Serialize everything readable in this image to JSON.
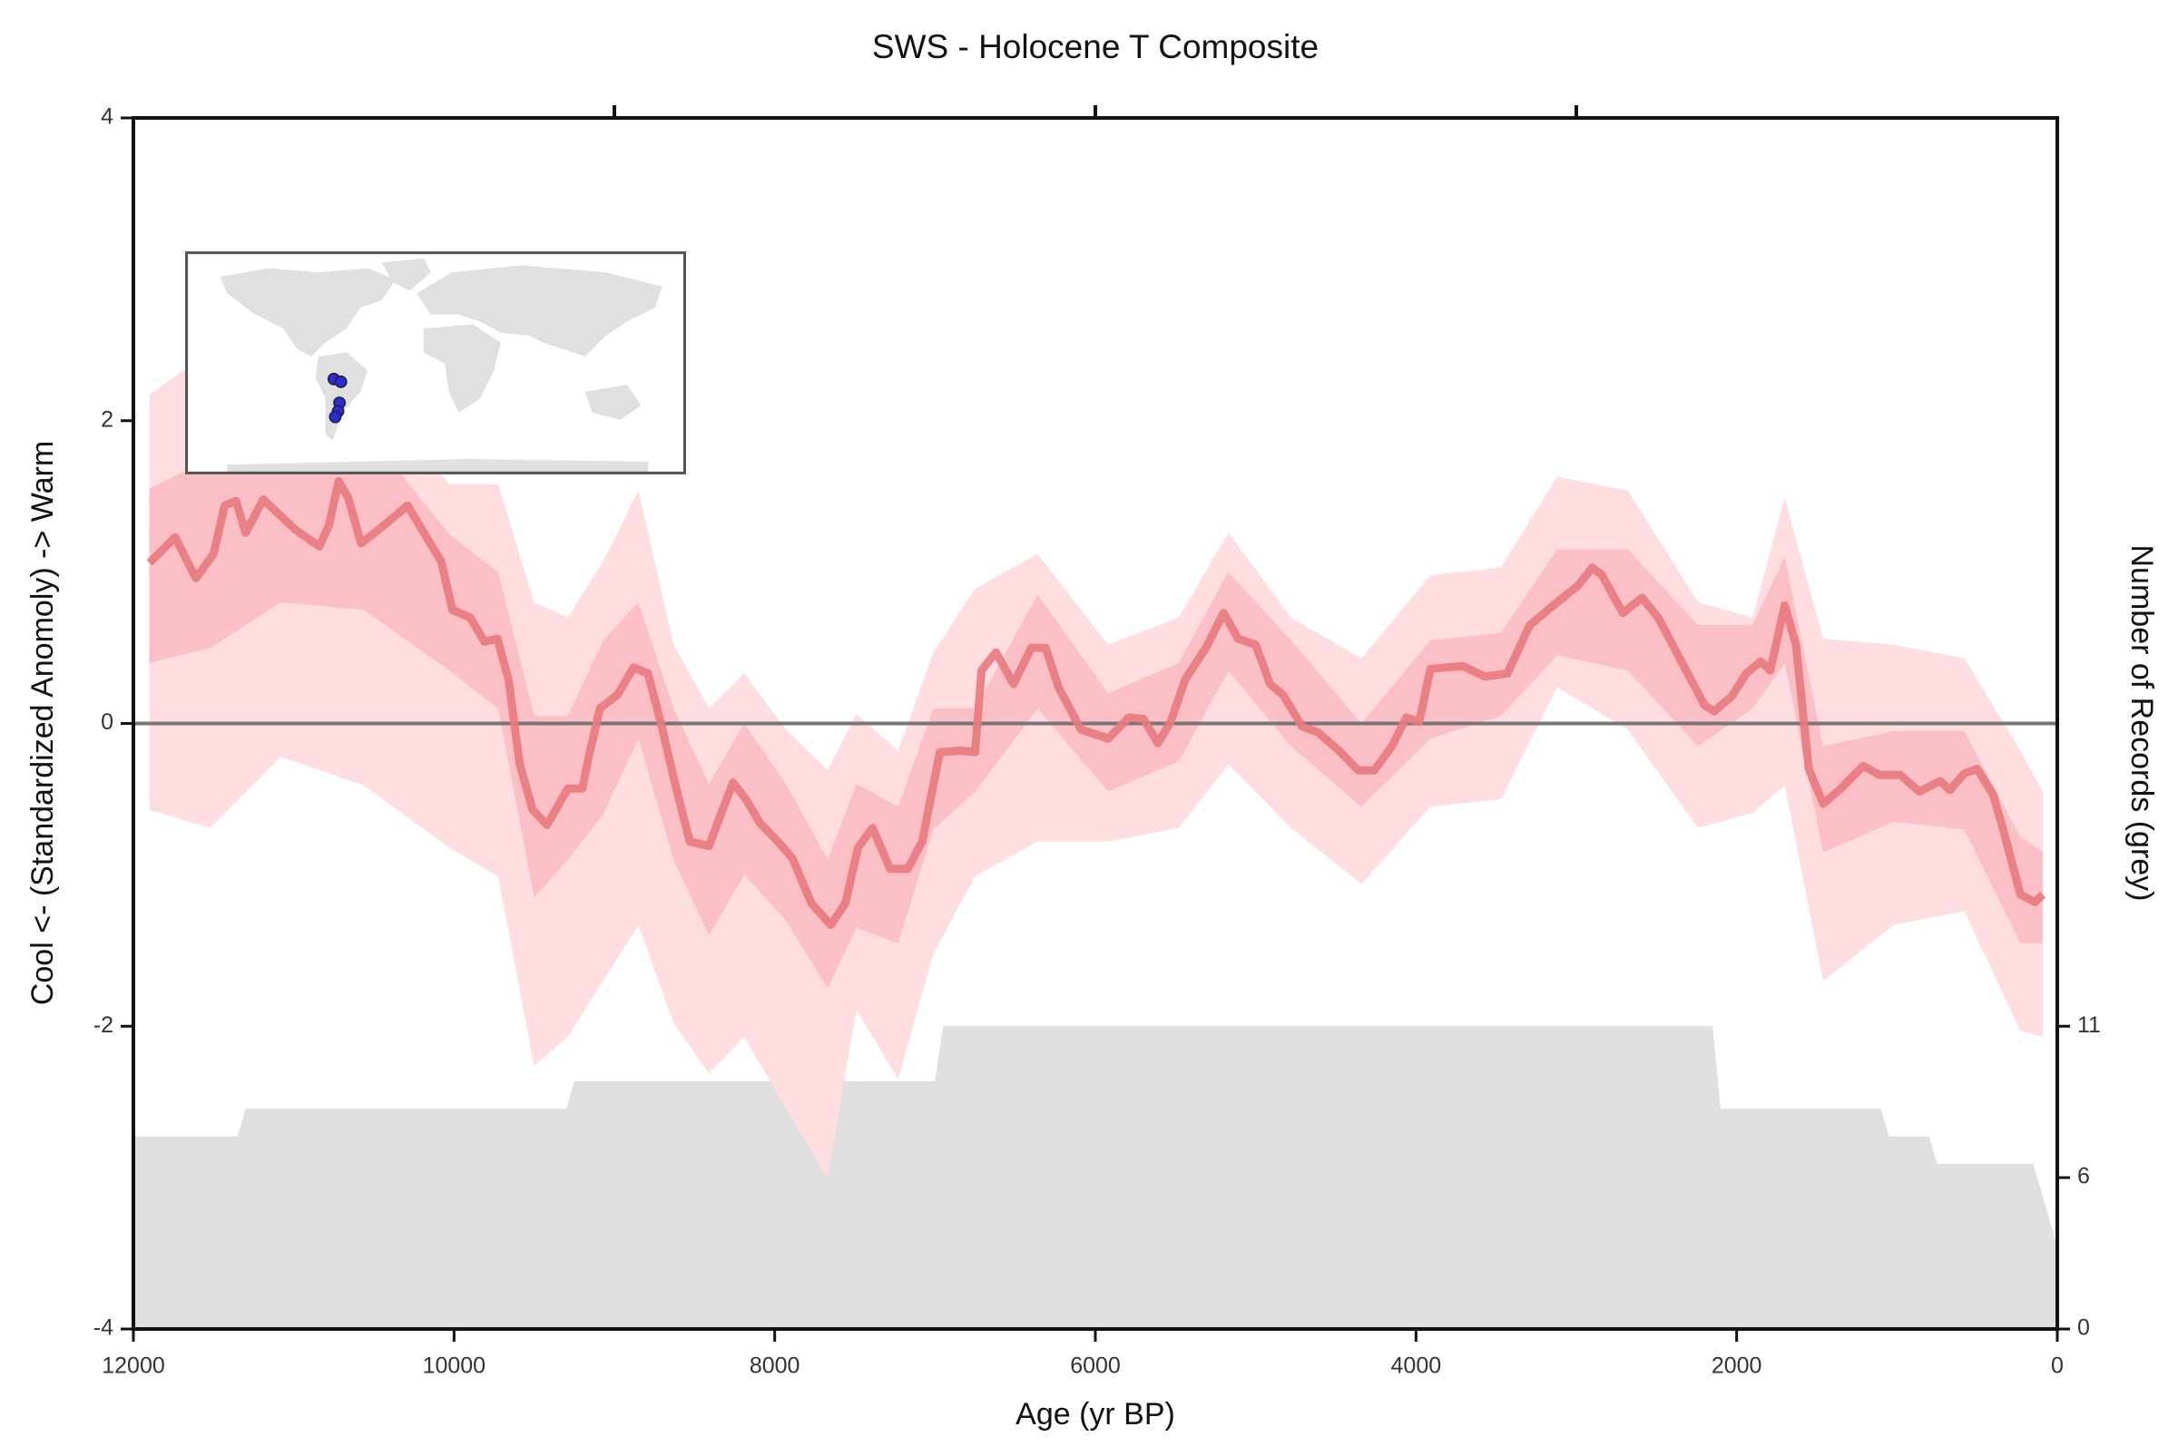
{
  "chart_data": {
    "type": "line",
    "title": "SWS - Holocene T Composite",
    "xlabel": "Age (yr BP)",
    "ylabel": "Cool <- (Standardized Anomoly) -> Warm",
    "y2label": "Number of Records (grey)",
    "xlim": [
      12000,
      0
    ],
    "xticks": [
      12000,
      10000,
      8000,
      6000,
      4000,
      2000,
      0
    ],
    "top_xticks": [
      9000,
      6000,
      3000
    ],
    "ylim": [
      -4,
      4
    ],
    "yticks": [
      -4,
      -2,
      0,
      2,
      4
    ],
    "y2lim": [
      0,
      44
    ],
    "y2ticks": [
      0,
      {
        "value": 5.5,
        "label": "6"
      },
      11
    ],
    "hline": 0,
    "hline_color": "#777777",
    "color": "#e8787c",
    "x": [
      11900,
      11740,
      11610,
      11500,
      11430,
      11360,
      11300,
      11190,
      10990,
      10840,
      10780,
      10720,
      10660,
      10580,
      10470,
      10290,
      10160,
      10080,
      10010,
      9900,
      9810,
      9730,
      9660,
      9590,
      9510,
      9420,
      9290,
      9200,
      9160,
      9090,
      8980,
      8880,
      8790,
      8700,
      8630,
      8530,
      8410,
      8350,
      8260,
      8180,
      8090,
      7980,
      7890,
      7770,
      7650,
      7560,
      7480,
      7390,
      7280,
      7170,
      7080,
      6970,
      6840,
      6750,
      6710,
      6620,
      6510,
      6400,
      6310,
      6230,
      6090,
      5920,
      5790,
      5700,
      5610,
      5530,
      5440,
      5310,
      5200,
      5110,
      5000,
      4910,
      4830,
      4710,
      4610,
      4480,
      4360,
      4260,
      4150,
      4060,
      3980,
      3910,
      3710,
      3570,
      3430,
      3290,
      3120,
      2990,
      2900,
      2840,
      2710,
      2590,
      2490,
      2330,
      2200,
      2140,
      2030,
      1940,
      1850,
      1790,
      1700,
      1630,
      1550,
      1460,
      1350,
      1210,
      1110,
      980,
      860,
      730,
      670,
      580,
      500,
      400,
      330,
      230,
      140,
      90
    ],
    "values": [
      1.06,
      1.23,
      0.96,
      1.12,
      1.44,
      1.47,
      1.26,
      1.48,
      1.28,
      1.17,
      1.31,
      1.6,
      1.49,
      1.19,
      1.28,
      1.44,
      1.21,
      1.07,
      0.75,
      0.7,
      0.54,
      0.56,
      0.29,
      -0.27,
      -0.57,
      -0.67,
      -0.43,
      -0.43,
      -0.22,
      0.1,
      0.19,
      0.37,
      0.33,
      -0.04,
      -0.36,
      -0.78,
      -0.81,
      -0.64,
      -0.39,
      -0.5,
      -0.66,
      -0.78,
      -0.89,
      -1.19,
      -1.33,
      -1.19,
      -0.82,
      -0.69,
      -0.96,
      -0.96,
      -0.78,
      -0.19,
      -0.18,
      -0.19,
      0.35,
      0.47,
      0.26,
      0.5,
      0.5,
      0.24,
      -0.04,
      -0.1,
      0.04,
      0.03,
      -0.13,
      0.01,
      0.29,
      0.5,
      0.73,
      0.56,
      0.52,
      0.26,
      0.19,
      -0.02,
      -0.06,
      -0.18,
      -0.31,
      -0.31,
      -0.15,
      0.04,
      0.01,
      0.36,
      0.38,
      0.31,
      0.33,
      0.65,
      0.8,
      0.91,
      1.03,
      0.98,
      0.73,
      0.83,
      0.7,
      0.38,
      0.12,
      0.08,
      0.18,
      0.33,
      0.41,
      0.35,
      0.78,
      0.52,
      -0.3,
      -0.53,
      -0.43,
      -0.28,
      -0.34,
      -0.34,
      -0.45,
      -0.38,
      -0.44,
      -0.33,
      -0.3,
      -0.47,
      -0.73,
      -1.13,
      -1.18,
      -1.13
    ],
    "band_x": [
      11900,
      11520,
      11080,
      10560,
      10030,
      9725,
      9500,
      9290,
      9070,
      8850,
      8630,
      8410,
      8190,
      7930,
      7670,
      7490,
      7230,
      7010,
      6750,
      6360,
      5920,
      5480,
      5170,
      4780,
      4340,
      3910,
      3470,
      3120,
      2680,
      2240,
      1900,
      1700,
      1460,
      1020,
      580,
      230,
      90
    ],
    "bands": [
      {
        "color": "#ffdde1",
        "lower": [
          -0.57,
          -0.69,
          -0.22,
          -0.41,
          -0.82,
          -1.01,
          -2.26,
          -2.07,
          -1.7,
          -1.33,
          -1.98,
          -2.31,
          -2.07,
          -2.54,
          -3.0,
          -1.89,
          -2.35,
          -1.52,
          -1.01,
          -0.78,
          -0.78,
          -0.69,
          -0.27,
          -0.69,
          -1.06,
          -0.55,
          -0.5,
          0.24,
          -0.04,
          -0.69,
          -0.59,
          -0.41,
          -1.7,
          -1.33,
          -1.24,
          -2.03,
          -2.07
        ],
        "upper": [
          2.17,
          2.46,
          2.1,
          2.3,
          1.58,
          1.58,
          0.8,
          0.7,
          1.07,
          1.54,
          0.52,
          0.1,
          0.33,
          -0.04,
          -0.31,
          0.06,
          -0.18,
          0.47,
          0.89,
          1.12,
          0.52,
          0.7,
          1.26,
          0.7,
          0.43,
          0.98,
          1.03,
          1.63,
          1.54,
          0.8,
          0.7,
          1.49,
          0.56,
          0.52,
          0.43,
          -0.18,
          -0.45
        ]
      },
      {
        "color": "#fbc0c6",
        "lower": [
          0.4,
          0.5,
          0.8,
          0.75,
          0.35,
          0.1,
          -1.15,
          -0.9,
          -0.6,
          -0.1,
          -0.9,
          -1.4,
          -1.0,
          -1.3,
          -1.75,
          -1.35,
          -1.45,
          -0.7,
          -0.45,
          0.1,
          -0.45,
          -0.25,
          0.35,
          -0.15,
          -0.55,
          -0.1,
          0.05,
          0.45,
          0.35,
          -0.15,
          0.1,
          0.4,
          -0.85,
          -0.65,
          -0.7,
          -1.45,
          -1.45
        ],
        "upper": [
          1.55,
          1.75,
          1.9,
          1.95,
          1.25,
          1.0,
          0.05,
          0.05,
          0.55,
          0.8,
          0.1,
          -0.4,
          0.0,
          -0.4,
          -0.9,
          -0.4,
          -0.55,
          0.1,
          0.1,
          0.85,
          0.2,
          0.4,
          1.0,
          0.55,
          0.0,
          0.55,
          0.6,
          1.15,
          1.15,
          0.65,
          0.65,
          1.1,
          -0.15,
          -0.05,
          -0.05,
          -0.75,
          -0.85
        ]
      }
    ],
    "records": {
      "axis": "y2",
      "color": "#dfdfdf",
      "x": [
        12000,
        11350,
        11300,
        9300,
        9250,
        7000,
        6950,
        2150,
        2100,
        1100,
        1050,
        800,
        750,
        150,
        0
      ],
      "values": [
        7,
        7,
        8,
        8,
        9,
        9,
        11,
        11,
        8,
        8,
        7,
        7,
        6,
        6,
        3
      ]
    }
  }
}
